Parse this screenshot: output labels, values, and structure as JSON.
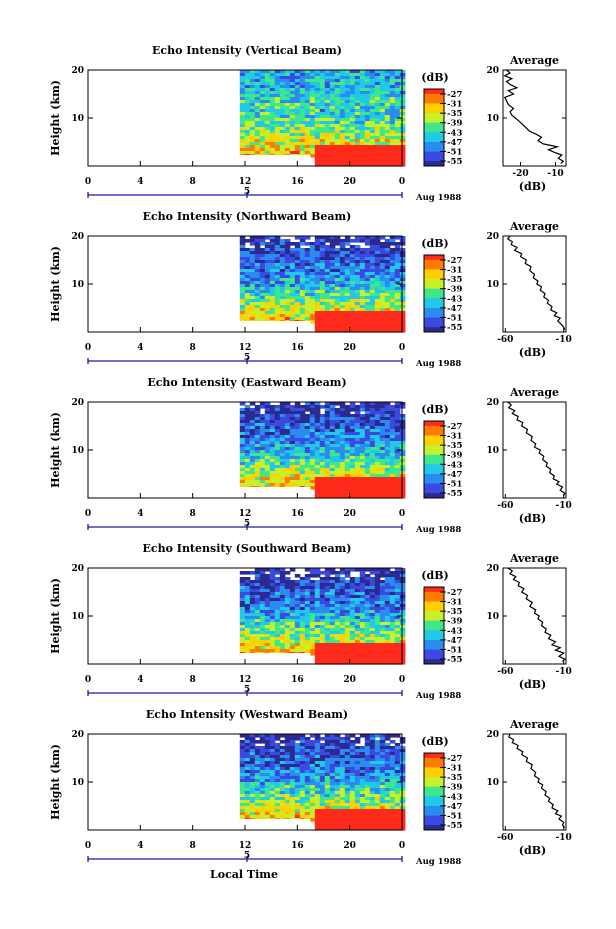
{
  "figure": {
    "xlabel": "Local Time",
    "colorbar_unit": "(dB)",
    "colorbar_ticks": [
      "-27",
      "-31",
      "-35",
      "-39",
      "-43",
      "-47",
      "-51",
      "-55"
    ],
    "date_label": "Aug 1988",
    "day_marker": "5",
    "profile_title": "Average",
    "profile_xlabel": "(dB)",
    "ylabel": "Height (km)"
  },
  "chart_data": [
    {
      "type": "heatmap",
      "title": "Echo Intensity (Vertical Beam)",
      "ylabel": "Height (km)",
      "xlabel": "Local Time",
      "xlim": [
        0,
        24
      ],
      "ylim": [
        0,
        20
      ],
      "xticks": [
        "0",
        "4",
        "8",
        "12",
        "16",
        "20",
        "0"
      ],
      "yticks": [
        "10",
        "20"
      ],
      "data_start_hour": 11.6,
      "clutter_edge_hour": 17.0,
      "colorbar": {
        "unit": "(dB)",
        "ticks": [
          -27,
          -31,
          -35,
          -39,
          -43,
          -47,
          -51,
          -55
        ]
      },
      "profile": {
        "title": "Average",
        "xlabel": "(dB)",
        "xticks": [
          -20,
          -10
        ],
        "xlim": [
          -25,
          -7
        ],
        "ylim": [
          0,
          20
        ],
        "x": [
          -8.5,
          -7.8,
          -9.2,
          -8.2,
          -10.5,
          -12.0,
          -9.5,
          -13.5,
          -15.0,
          -14.0,
          -15.5,
          -17.5,
          -18.5,
          -19.5,
          -20.5,
          -21.5,
          -22.5,
          -23.0,
          -22.0,
          -23.5,
          -24.0,
          -24.5,
          -22.0,
          -23.5,
          -21.0,
          -23.0,
          -24.0,
          -22.5,
          -24.5,
          -23.0,
          -24.0
        ],
        "y": [
          0.5,
          1.0,
          1.6,
          2.3,
          2.9,
          3.4,
          4.0,
          4.6,
          5.3,
          6.0,
          6.6,
          7.3,
          8.0,
          8.7,
          9.4,
          10.0,
          10.6,
          11.3,
          12.0,
          12.8,
          13.6,
          14.3,
          15.0,
          15.7,
          16.3,
          17.0,
          17.6,
          18.2,
          18.8,
          19.4,
          20.0
        ]
      }
    },
    {
      "type": "heatmap",
      "title": "Echo Intensity (Northward Beam)",
      "ylabel": "Height (km)",
      "xlabel": "Local Time",
      "xlim": [
        0,
        24
      ],
      "ylim": [
        0,
        20
      ],
      "xticks": [
        "0",
        "4",
        "8",
        "12",
        "16",
        "20",
        "0"
      ],
      "yticks": [
        "10",
        "20"
      ],
      "data_start_hour": 11.6,
      "clutter_edge_hour": 17.0,
      "colorbar": {
        "unit": "(dB)",
        "ticks": [
          -27,
          -31,
          -35,
          -39,
          -43,
          -47,
          -51,
          -55
        ]
      },
      "profile": {
        "title": "Average",
        "xlabel": "(dB)",
        "xticks": [
          -60,
          -10
        ],
        "xlim": [
          -62,
          -8
        ],
        "ylim": [
          0,
          20
        ],
        "x": [
          -9,
          -10,
          -12,
          -15,
          -13,
          -18,
          -16,
          -21,
          -20,
          -24,
          -23,
          -27,
          -26,
          -30,
          -29,
          -33,
          -32,
          -36,
          -35,
          -39,
          -38,
          -43,
          -42,
          -47,
          -46,
          -52,
          -50,
          -55,
          -54,
          -58,
          -56
        ],
        "y": [
          0.5,
          1.0,
          1.6,
          2.3,
          2.9,
          3.4,
          4.0,
          4.6,
          5.3,
          6.0,
          6.6,
          7.3,
          8.0,
          8.7,
          9.4,
          10.0,
          10.6,
          11.3,
          12.0,
          12.8,
          13.6,
          14.3,
          15.0,
          15.7,
          16.3,
          17.0,
          17.6,
          18.2,
          18.8,
          19.4,
          20.0
        ]
      }
    },
    {
      "type": "heatmap",
      "title": "Echo Intensity (Eastward Beam)",
      "ylabel": "Height (km)",
      "xlabel": "Local Time",
      "xlim": [
        0,
        24
      ],
      "ylim": [
        0,
        20
      ],
      "xticks": [
        "0",
        "4",
        "8",
        "12",
        "16",
        "20",
        "0"
      ],
      "yticks": [
        "10",
        "20"
      ],
      "data_start_hour": 11.6,
      "clutter_edge_hour": 17.0,
      "colorbar": {
        "unit": "(dB)",
        "ticks": [
          -27,
          -31,
          -35,
          -39,
          -43,
          -47,
          -51,
          -55
        ]
      },
      "profile": {
        "title": "Average",
        "xlabel": "(dB)",
        "xticks": [
          -60,
          -10
        ],
        "xlim": [
          -62,
          -8
        ],
        "ylim": [
          0,
          20
        ],
        "x": [
          -10,
          -9,
          -13,
          -11,
          -16,
          -14,
          -19,
          -18,
          -22,
          -21,
          -25,
          -24,
          -28,
          -27,
          -31,
          -30,
          -35,
          -34,
          -38,
          -37,
          -42,
          -41,
          -46,
          -45,
          -50,
          -49,
          -54,
          -52,
          -57,
          -55,
          -58
        ],
        "y": [
          0.5,
          1.0,
          1.6,
          2.3,
          2.9,
          3.4,
          4.0,
          4.6,
          5.3,
          6.0,
          6.6,
          7.3,
          8.0,
          8.7,
          9.4,
          10.0,
          10.6,
          11.3,
          12.0,
          12.8,
          13.6,
          14.3,
          15.0,
          15.7,
          16.3,
          17.0,
          17.6,
          18.2,
          18.8,
          19.4,
          20.0
        ]
      }
    },
    {
      "type": "heatmap",
      "title": "Echo Intensity (Southward Beam)",
      "ylabel": "Height (km)",
      "xlabel": "Local Time",
      "xlim": [
        0,
        24
      ],
      "ylim": [
        0,
        20
      ],
      "xticks": [
        "0",
        "4",
        "8",
        "12",
        "16",
        "20",
        "0"
      ],
      "yticks": [
        "10",
        "20"
      ],
      "data_start_hour": 11.6,
      "clutter_edge_hour": 17.0,
      "colorbar": {
        "unit": "(dB)",
        "ticks": [
          -27,
          -31,
          -35,
          -39,
          -43,
          -47,
          -51,
          -55
        ]
      },
      "profile": {
        "title": "Average",
        "xlabel": "(dB)",
        "xticks": [
          -60,
          -10
        ],
        "xlim": [
          -62,
          -8
        ],
        "ylim": [
          0,
          20
        ],
        "x": [
          -11,
          -9,
          -14,
          -10,
          -17,
          -13,
          -20,
          -17,
          -23,
          -21,
          -26,
          -25,
          -29,
          -28,
          -32,
          -31,
          -35,
          -34,
          -39,
          -37,
          -42,
          -41,
          -46,
          -44,
          -49,
          -48,
          -53,
          -51,
          -56,
          -54,
          -58
        ],
        "y": [
          0.5,
          1.0,
          1.6,
          2.3,
          2.9,
          3.4,
          4.0,
          4.6,
          5.3,
          6.0,
          6.6,
          7.3,
          8.0,
          8.7,
          9.4,
          10.0,
          10.6,
          11.3,
          12.0,
          12.8,
          13.6,
          14.3,
          15.0,
          15.7,
          16.3,
          17.0,
          17.6,
          18.2,
          18.8,
          19.4,
          20.0
        ]
      }
    },
    {
      "type": "heatmap",
      "title": "Echo Intensity (Westward Beam)",
      "ylabel": "Height (km)",
      "xlabel": "Local Time",
      "xlim": [
        0,
        24
      ],
      "ylim": [
        0,
        20
      ],
      "xticks": [
        "0",
        "4",
        "8",
        "12",
        "16",
        "20",
        "0"
      ],
      "yticks": [
        "10",
        "20"
      ],
      "data_start_hour": 11.6,
      "clutter_edge_hour": 17.0,
      "colorbar": {
        "unit": "(dB)",
        "ticks": [
          -27,
          -31,
          -35,
          -39,
          -43,
          -47,
          -51,
          -55
        ]
      },
      "profile": {
        "title": "Average",
        "xlabel": "(dB)",
        "xticks": [
          -60,
          -10
        ],
        "xlim": [
          -62,
          -8
        ],
        "ylim": [
          0,
          20
        ],
        "x": [
          -9,
          -11,
          -10,
          -14,
          -12,
          -17,
          -15,
          -20,
          -19,
          -23,
          -22,
          -26,
          -25,
          -29,
          -28,
          -32,
          -31,
          -35,
          -34,
          -38,
          -37,
          -42,
          -41,
          -46,
          -45,
          -50,
          -49,
          -54,
          -53,
          -57,
          -56
        ],
        "y": [
          0.5,
          1.0,
          1.6,
          2.3,
          2.9,
          3.4,
          4.0,
          4.6,
          5.3,
          6.0,
          6.6,
          7.3,
          8.0,
          8.7,
          9.4,
          10.0,
          10.6,
          11.3,
          12.0,
          12.8,
          13.6,
          14.3,
          15.0,
          15.7,
          16.3,
          17.0,
          17.6,
          18.2,
          18.8,
          19.4,
          20.0
        ]
      }
    }
  ],
  "colors": {
    "colormap": [
      "#ff2a1a",
      "#ff7a00",
      "#ffd000",
      "#c8f02a",
      "#3ee88a",
      "#22c8e8",
      "#2a8cf0",
      "#3a4ae0",
      "#2a2a90"
    ],
    "date_axis": "#1a1aa0"
  }
}
